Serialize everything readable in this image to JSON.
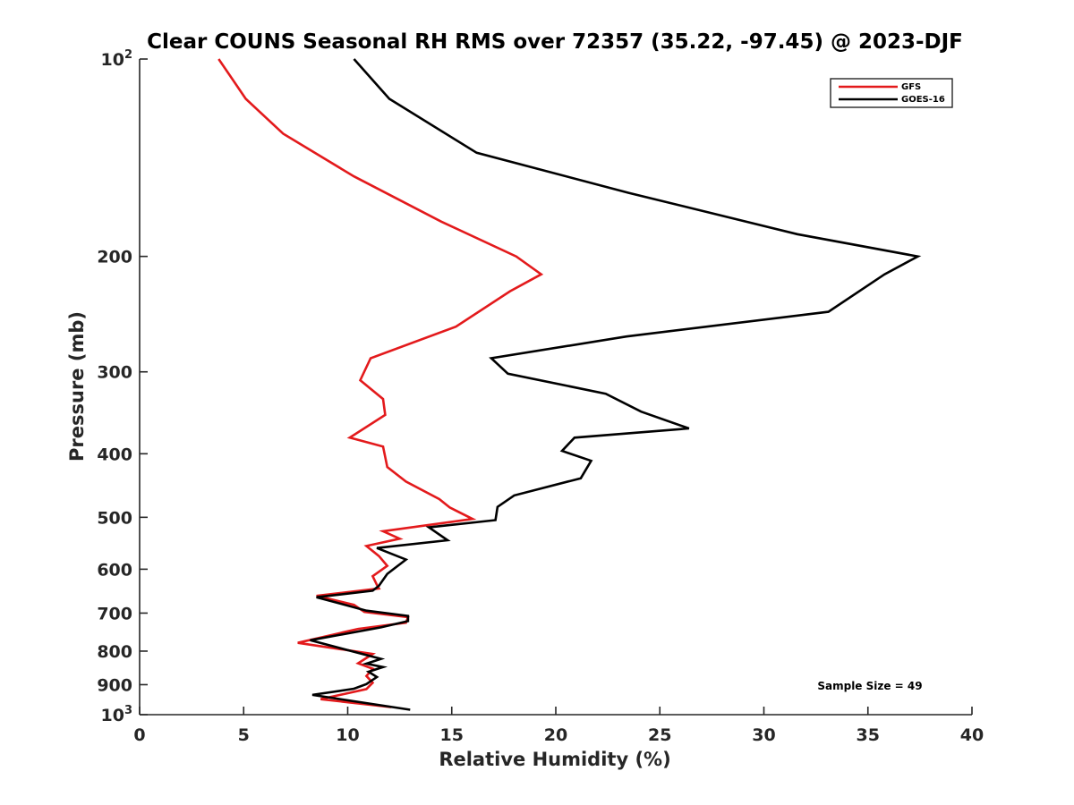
{
  "chart_data": {
    "type": "line",
    "title": "Clear COUNS Seasonal RH RMS over 72357 (35.22, -97.45) @ 2023-DJF",
    "xlabel": "Relative Humidity (%)",
    "ylabel": "Pressure (mb)",
    "xlim": [
      0,
      40
    ],
    "ylim": [
      100,
      1000
    ],
    "yscale": "log",
    "y_reversed": true,
    "x_ticks": [
      "0",
      "5",
      "10",
      "15",
      "20",
      "25",
      "30",
      "35",
      "40"
    ],
    "y_ticks": [
      {
        "value": 100,
        "base": "10",
        "exp": "2"
      },
      {
        "value": 200,
        "label": "200"
      },
      {
        "value": 300,
        "label": "300"
      },
      {
        "value": 400,
        "label": "400"
      },
      {
        "value": 500,
        "label": "500"
      },
      {
        "value": 600,
        "label": "600"
      },
      {
        "value": 700,
        "label": "700"
      },
      {
        "value": 800,
        "label": "800"
      },
      {
        "value": 900,
        "label": "900"
      },
      {
        "value": 1000,
        "base": "10",
        "exp": "3"
      }
    ],
    "legend": {
      "position": "top-right"
    },
    "annotation": "Sample Size = 49",
    "series": [
      {
        "name": "GFS",
        "color": "#e31a1c",
        "points": [
          [
            3.8,
            100
          ],
          [
            5.1,
            115
          ],
          [
            6.9,
            130
          ],
          [
            10.3,
            151
          ],
          [
            14.5,
            177
          ],
          [
            18.1,
            200
          ],
          [
            19.3,
            213
          ],
          [
            17.8,
            226
          ],
          [
            15.2,
            256
          ],
          [
            11.1,
            286
          ],
          [
            10.6,
            309
          ],
          [
            11.7,
            330
          ],
          [
            11.8,
            349
          ],
          [
            10.1,
            378
          ],
          [
            11.7,
            390
          ],
          [
            11.9,
            419
          ],
          [
            12.8,
            441
          ],
          [
            14.4,
            469
          ],
          [
            14.9,
            483
          ],
          [
            16.0,
            503
          ],
          [
            11.7,
            525
          ],
          [
            12.5,
            539
          ],
          [
            10.9,
            553
          ],
          [
            11.5,
            573
          ],
          [
            11.9,
            593
          ],
          [
            11.2,
            615
          ],
          [
            11.4,
            634
          ],
          [
            11.5,
            642
          ],
          [
            8.5,
            659
          ],
          [
            10.3,
            680
          ],
          [
            10.8,
            697
          ],
          [
            12.9,
            710
          ],
          [
            12.8,
            724
          ],
          [
            10.5,
            740
          ],
          [
            7.6,
            777
          ],
          [
            11.2,
            808
          ],
          [
            10.5,
            835
          ],
          [
            11.2,
            851
          ],
          [
            10.9,
            873
          ],
          [
            11.2,
            894
          ],
          [
            10.9,
            914
          ],
          [
            8.7,
            947
          ],
          [
            12.1,
            974
          ]
        ]
      },
      {
        "name": "GOES-16",
        "color": "#000000",
        "points": [
          [
            10.3,
            100
          ],
          [
            12.0,
            115
          ],
          [
            16.2,
            139
          ],
          [
            23.5,
            160
          ],
          [
            31.6,
            185
          ],
          [
            37.4,
            200
          ],
          [
            35.8,
            213
          ],
          [
            33.1,
            243
          ],
          [
            23.4,
            265
          ],
          [
            16.9,
            286
          ],
          [
            17.7,
            302
          ],
          [
            22.4,
            324
          ],
          [
            24.1,
            345
          ],
          [
            26.4,
            366
          ],
          [
            20.9,
            378
          ],
          [
            20.3,
            396
          ],
          [
            21.7,
            410
          ],
          [
            21.2,
            436
          ],
          [
            18.0,
            463
          ],
          [
            17.2,
            482
          ],
          [
            17.1,
            505
          ],
          [
            13.9,
            518
          ],
          [
            14.8,
            542
          ],
          [
            11.4,
            557
          ],
          [
            12.8,
            580
          ],
          [
            11.9,
            610
          ],
          [
            11.5,
            636
          ],
          [
            11.2,
            647
          ],
          [
            8.5,
            662
          ],
          [
            10.9,
            694
          ],
          [
            12.9,
            707
          ],
          [
            12.9,
            720
          ],
          [
            11.6,
            736
          ],
          [
            8.2,
            770
          ],
          [
            11.6,
            822
          ],
          [
            10.9,
            836
          ],
          [
            11.7,
            846
          ],
          [
            11.0,
            860
          ],
          [
            11.4,
            876
          ],
          [
            10.9,
            898
          ],
          [
            10.3,
            913
          ],
          [
            8.3,
            933
          ],
          [
            13.0,
            983
          ]
        ]
      }
    ]
  }
}
